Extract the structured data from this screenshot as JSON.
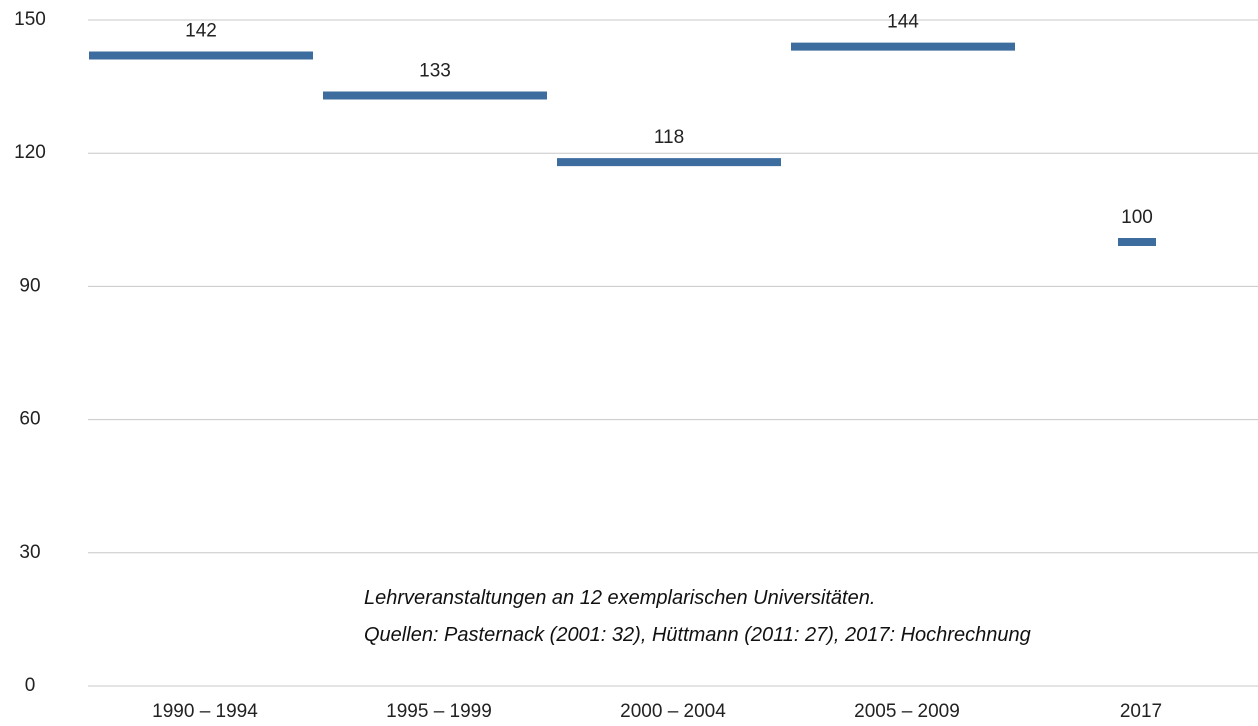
{
  "chart_data": {
    "type": "segment",
    "categories": [
      "1990 – 1994",
      "1995 – 1999",
      "2000 – 2004",
      "2005 – 2009",
      "2017"
    ],
    "values": [
      142,
      133,
      118,
      144,
      100
    ],
    "color": "#3d6d9e",
    "ylim": [
      0,
      150
    ],
    "yticks": [
      0,
      30,
      60,
      90,
      120,
      150
    ],
    "grid": true,
    "annotations": [
      "Lehrveranstaltungen an 12 exemplarischen Universitäten.",
      "Quellen: Pasternack (2001: 32), Hüttmann (2011: 27), 2017: Hochrechnung"
    ]
  }
}
